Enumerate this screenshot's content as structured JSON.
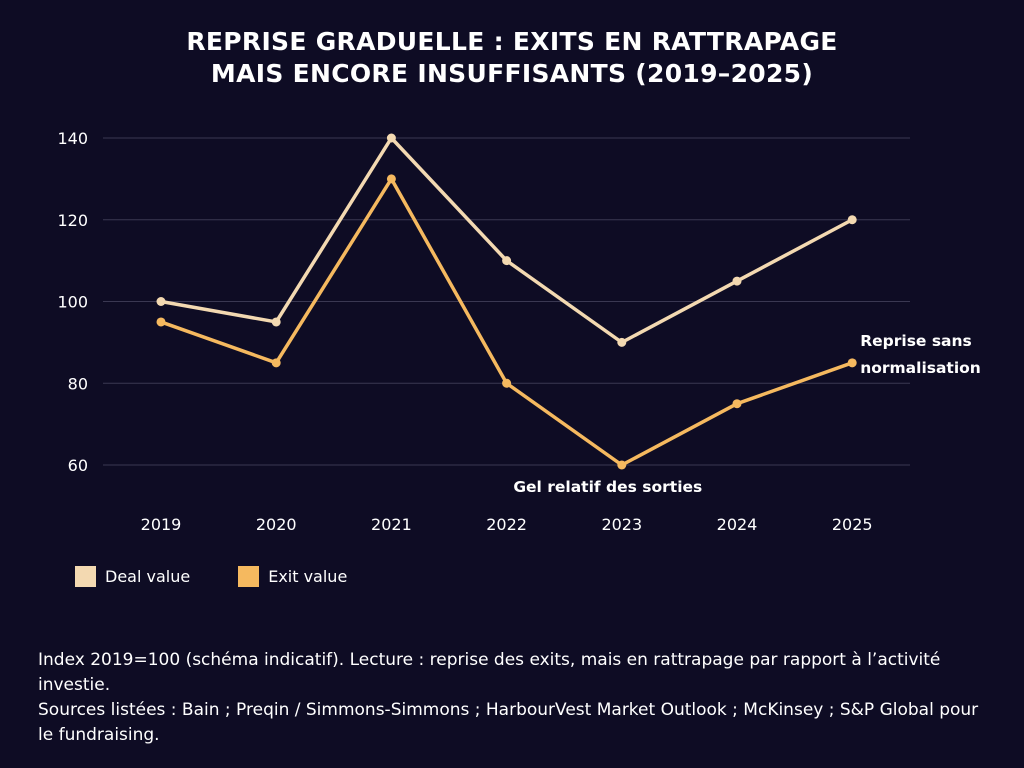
{
  "title_lines": [
    "REPRISE GRADUELLE : EXITS EN RATTRAPAGE",
    "MAIS ENCORE INSUFFISANTS (2019–2025)"
  ],
  "chart_data": {
    "type": "line",
    "title": "REPRISE GRADUELLE : EXITS EN RATTRAPAGE MAIS ENCORE INSUFFISANTS (2019–2025)",
    "categories": [
      "2019",
      "2020",
      "2021",
      "2022",
      "2023",
      "2024",
      "2025"
    ],
    "yticks": [
      60,
      80,
      100,
      120,
      140
    ],
    "ylim": [
      60,
      140
    ],
    "grid": true,
    "legend_placement": "bottom-left",
    "series": [
      {
        "name": "Deal value",
        "color": "#f3d9b1",
        "values": [
          100,
          95,
          140,
          110,
          90,
          105,
          120
        ]
      },
      {
        "name": "Exit value",
        "color": "#f5b95f",
        "values": [
          95,
          85,
          130,
          80,
          60,
          75,
          85
        ]
      }
    ],
    "annotations": [
      {
        "text_lines": [
          "Reprise sans",
          "normalisation"
        ],
        "category": "2025",
        "value": 85
      },
      {
        "text_lines": [
          "Gel relatif des sorties"
        ],
        "category": "2023",
        "value": 60
      }
    ]
  },
  "notes": [
    "Index 2019=100 (schéma indicatif). Lecture : reprise des exits, mais en rattrapage par rapport à l’activité investie.",
    "Sources listées : Bain ; Preqin / Simmons-Simmons ; HarbourVest Market Outlook ; McKinsey ; S&P Global pour le fundraising."
  ]
}
